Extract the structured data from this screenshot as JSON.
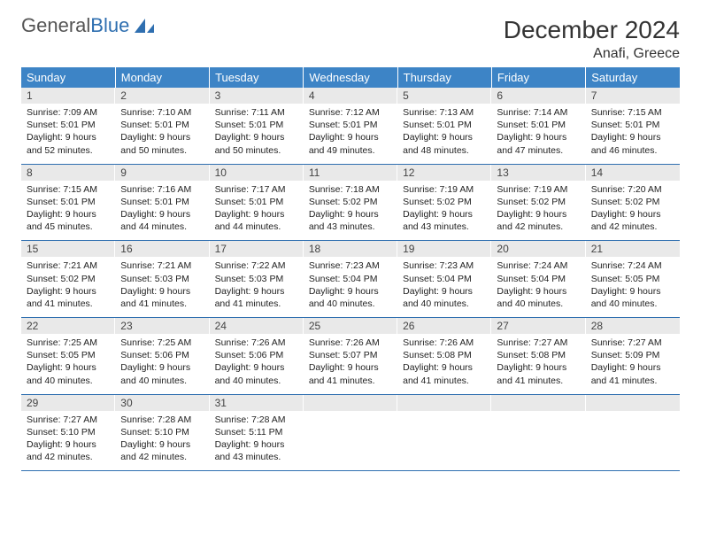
{
  "logo": {
    "word1": "General",
    "word2": "Blue"
  },
  "title": "December 2024",
  "subtitle": "Anafi, Greece",
  "colors": {
    "header_bg": "#3d84c6",
    "header_text": "#ffffff",
    "daynum_bg": "#e9e9e9",
    "row_border": "#2f6fb0",
    "body_text": "#222222",
    "logo_gray": "#555555",
    "logo_blue": "#2f6fb0"
  },
  "weekdays": [
    "Sunday",
    "Monday",
    "Tuesday",
    "Wednesday",
    "Thursday",
    "Friday",
    "Saturday"
  ],
  "days": [
    {
      "n": "1",
      "sunrise": "7:09 AM",
      "sunset": "5:01 PM",
      "day_h": "9",
      "day_m": "52"
    },
    {
      "n": "2",
      "sunrise": "7:10 AM",
      "sunset": "5:01 PM",
      "day_h": "9",
      "day_m": "50"
    },
    {
      "n": "3",
      "sunrise": "7:11 AM",
      "sunset": "5:01 PM",
      "day_h": "9",
      "day_m": "50"
    },
    {
      "n": "4",
      "sunrise": "7:12 AM",
      "sunset": "5:01 PM",
      "day_h": "9",
      "day_m": "49"
    },
    {
      "n": "5",
      "sunrise": "7:13 AM",
      "sunset": "5:01 PM",
      "day_h": "9",
      "day_m": "48"
    },
    {
      "n": "6",
      "sunrise": "7:14 AM",
      "sunset": "5:01 PM",
      "day_h": "9",
      "day_m": "47"
    },
    {
      "n": "7",
      "sunrise": "7:15 AM",
      "sunset": "5:01 PM",
      "day_h": "9",
      "day_m": "46"
    },
    {
      "n": "8",
      "sunrise": "7:15 AM",
      "sunset": "5:01 PM",
      "day_h": "9",
      "day_m": "45"
    },
    {
      "n": "9",
      "sunrise": "7:16 AM",
      "sunset": "5:01 PM",
      "day_h": "9",
      "day_m": "44"
    },
    {
      "n": "10",
      "sunrise": "7:17 AM",
      "sunset": "5:01 PM",
      "day_h": "9",
      "day_m": "44"
    },
    {
      "n": "11",
      "sunrise": "7:18 AM",
      "sunset": "5:02 PM",
      "day_h": "9",
      "day_m": "43"
    },
    {
      "n": "12",
      "sunrise": "7:19 AM",
      "sunset": "5:02 PM",
      "day_h": "9",
      "day_m": "43"
    },
    {
      "n": "13",
      "sunrise": "7:19 AM",
      "sunset": "5:02 PM",
      "day_h": "9",
      "day_m": "42"
    },
    {
      "n": "14",
      "sunrise": "7:20 AM",
      "sunset": "5:02 PM",
      "day_h": "9",
      "day_m": "42"
    },
    {
      "n": "15",
      "sunrise": "7:21 AM",
      "sunset": "5:02 PM",
      "day_h": "9",
      "day_m": "41"
    },
    {
      "n": "16",
      "sunrise": "7:21 AM",
      "sunset": "5:03 PM",
      "day_h": "9",
      "day_m": "41"
    },
    {
      "n": "17",
      "sunrise": "7:22 AM",
      "sunset": "5:03 PM",
      "day_h": "9",
      "day_m": "41"
    },
    {
      "n": "18",
      "sunrise": "7:23 AM",
      "sunset": "5:04 PM",
      "day_h": "9",
      "day_m": "40"
    },
    {
      "n": "19",
      "sunrise": "7:23 AM",
      "sunset": "5:04 PM",
      "day_h": "9",
      "day_m": "40"
    },
    {
      "n": "20",
      "sunrise": "7:24 AM",
      "sunset": "5:04 PM",
      "day_h": "9",
      "day_m": "40"
    },
    {
      "n": "21",
      "sunrise": "7:24 AM",
      "sunset": "5:05 PM",
      "day_h": "9",
      "day_m": "40"
    },
    {
      "n": "22",
      "sunrise": "7:25 AM",
      "sunset": "5:05 PM",
      "day_h": "9",
      "day_m": "40"
    },
    {
      "n": "23",
      "sunrise": "7:25 AM",
      "sunset": "5:06 PM",
      "day_h": "9",
      "day_m": "40"
    },
    {
      "n": "24",
      "sunrise": "7:26 AM",
      "sunset": "5:06 PM",
      "day_h": "9",
      "day_m": "40"
    },
    {
      "n": "25",
      "sunrise": "7:26 AM",
      "sunset": "5:07 PM",
      "day_h": "9",
      "day_m": "41"
    },
    {
      "n": "26",
      "sunrise": "7:26 AM",
      "sunset": "5:08 PM",
      "day_h": "9",
      "day_m": "41"
    },
    {
      "n": "27",
      "sunrise": "7:27 AM",
      "sunset": "5:08 PM",
      "day_h": "9",
      "day_m": "41"
    },
    {
      "n": "28",
      "sunrise": "7:27 AM",
      "sunset": "5:09 PM",
      "day_h": "9",
      "day_m": "41"
    },
    {
      "n": "29",
      "sunrise": "7:27 AM",
      "sunset": "5:10 PM",
      "day_h": "9",
      "day_m": "42"
    },
    {
      "n": "30",
      "sunrise": "7:28 AM",
      "sunset": "5:10 PM",
      "day_h": "9",
      "day_m": "42"
    },
    {
      "n": "31",
      "sunrise": "7:28 AM",
      "sunset": "5:11 PM",
      "day_h": "9",
      "day_m": "43"
    }
  ],
  "labels": {
    "sunrise": "Sunrise:",
    "sunset": "Sunset:",
    "daylight_prefix": "Daylight:",
    "hours_word": "hours",
    "and_word": "and",
    "minutes_word": "minutes."
  },
  "layout": {
    "first_weekday_index": 0,
    "trailing_empty": 4
  }
}
